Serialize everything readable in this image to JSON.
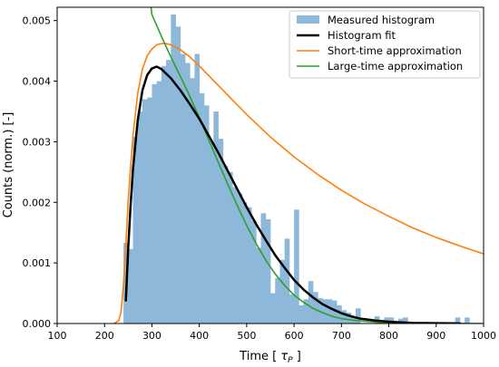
{
  "chart_data": {
    "type": "bar",
    "title": "",
    "xlabel": "Time [ τ_P ]",
    "xlabel_prefix": "Time [ ",
    "xlabel_symbol": "τ",
    "xlabel_subscript": "P",
    "xlabel_suffix": " ]",
    "ylabel": "Counts (norm.) [-]",
    "xlim": [
      100,
      1000
    ],
    "ylim": [
      0,
      0.00522
    ],
    "xticks": [
      100,
      200,
      300,
      400,
      500,
      600,
      700,
      800,
      900,
      1000
    ],
    "xtick_labels": [
      "100",
      "200",
      "300",
      "400",
      "500",
      "600",
      "700",
      "800",
      "900",
      "1000"
    ],
    "yticks": [
      0,
      0.001,
      0.002,
      0.003,
      0.004,
      0.005
    ],
    "ytick_labels": [
      "0.000",
      "0.001",
      "0.002",
      "0.003",
      "0.004",
      "0.005"
    ],
    "grid": false,
    "legend_position": "top-right",
    "series": [
      {
        "name": "Measured histogram",
        "kind": "histogram",
        "color": "#8db8da",
        "bin_width": 10,
        "bins": [
          [
            240,
            0.00133
          ],
          [
            250,
            0.00123
          ],
          [
            260,
            0.00308
          ],
          [
            270,
            0.0035
          ],
          [
            280,
            0.0037
          ],
          [
            290,
            0.00373
          ],
          [
            300,
            0.00395
          ],
          [
            310,
            0.004
          ],
          [
            320,
            0.00425
          ],
          [
            330,
            0.00435
          ],
          [
            340,
            0.0051
          ],
          [
            350,
            0.0049
          ],
          [
            360,
            0.00445
          ],
          [
            370,
            0.0043
          ],
          [
            380,
            0.00405
          ],
          [
            390,
            0.00445
          ],
          [
            400,
            0.0038
          ],
          [
            410,
            0.0036
          ],
          [
            420,
            0.003
          ],
          [
            430,
            0.0035
          ],
          [
            440,
            0.00305
          ],
          [
            450,
            0.0026
          ],
          [
            460,
            0.0025
          ],
          [
            470,
            0.00225
          ],
          [
            480,
            0.00215
          ],
          [
            490,
            0.002
          ],
          [
            500,
            0.00192
          ],
          [
            510,
            0.0017
          ],
          [
            520,
            0.00125
          ],
          [
            530,
            0.00182
          ],
          [
            540,
            0.00172
          ],
          [
            550,
            0.0005
          ],
          [
            560,
            0.00075
          ],
          [
            570,
            0.00105
          ],
          [
            580,
            0.0014
          ],
          [
            590,
            0.00048
          ],
          [
            600,
            0.00188
          ],
          [
            610,
            0.0003
          ],
          [
            620,
            0.0004
          ],
          [
            630,
            0.0007
          ],
          [
            640,
            0.00052
          ],
          [
            650,
            0.00042
          ],
          [
            660,
            0.0004
          ],
          [
            670,
            0.0004
          ],
          [
            680,
            0.00038
          ],
          [
            690,
            0.0003
          ],
          [
            700,
            0.00022
          ],
          [
            710,
            0.00018
          ],
          [
            720,
            0.00012
          ],
          [
            730,
            0.00025
          ],
          [
            770,
            0.00012
          ],
          [
            790,
            0.0001
          ],
          [
            800,
            0.0001
          ],
          [
            820,
            8e-05
          ],
          [
            830,
            0.0001
          ],
          [
            940,
            0.0001
          ],
          [
            960,
            0.0001
          ]
        ]
      },
      {
        "name": "Histogram fit",
        "kind": "line",
        "color": "#000000",
        "points": [
          [
            245,
            0.00038
          ],
          [
            250,
            0.00125
          ],
          [
            255,
            0.00195
          ],
          [
            260,
            0.00255
          ],
          [
            270,
            0.00335
          ],
          [
            280,
            0.00385
          ],
          [
            290,
            0.0041
          ],
          [
            300,
            0.00421
          ],
          [
            310,
            0.00424
          ],
          [
            320,
            0.0042
          ],
          [
            340,
            0.00405
          ],
          [
            360,
            0.00385
          ],
          [
            380,
            0.00362
          ],
          [
            400,
            0.00338
          ],
          [
            420,
            0.0031
          ],
          [
            440,
            0.00282
          ],
          [
            460,
            0.00252
          ],
          [
            480,
            0.00222
          ],
          [
            500,
            0.00192
          ],
          [
            520,
            0.00164
          ],
          [
            540,
            0.00138
          ],
          [
            560,
            0.00113
          ],
          [
            580,
            0.00092
          ],
          [
            600,
            0.00072
          ],
          [
            620,
            0.00056
          ],
          [
            640,
            0.00043
          ],
          [
            660,
            0.00032
          ],
          [
            680,
            0.00024
          ],
          [
            700,
            0.00017
          ],
          [
            720,
            0.00012
          ],
          [
            740,
            8e-05
          ],
          [
            770,
            5e-05
          ],
          [
            800,
            3e-05
          ],
          [
            850,
            1e-05
          ],
          [
            900,
            5e-06
          ],
          [
            950,
            2e-06
          ]
        ]
      },
      {
        "name": "Short-time approximation",
        "kind": "line",
        "color": "#ff7f0e",
        "points": [
          [
            220,
            0.0
          ],
          [
            230,
            5e-05
          ],
          [
            235,
            0.0002
          ],
          [
            240,
            0.00065
          ],
          [
            245,
            0.0013
          ],
          [
            250,
            0.00205
          ],
          [
            260,
            0.0031
          ],
          [
            270,
            0.0038
          ],
          [
            280,
            0.0042
          ],
          [
            290,
            0.00442
          ],
          [
            300,
            0.00453
          ],
          [
            310,
            0.0046
          ],
          [
            320,
            0.00462
          ],
          [
            330,
            0.00462
          ],
          [
            340,
            0.0046
          ],
          [
            360,
            0.00452
          ],
          [
            380,
            0.0044
          ],
          [
            400,
            0.00425
          ],
          [
            450,
            0.00385
          ],
          [
            500,
            0.00345
          ],
          [
            550,
            0.00308
          ],
          [
            600,
            0.00275
          ],
          [
            650,
            0.00246
          ],
          [
            700,
            0.0022
          ],
          [
            750,
            0.00197
          ],
          [
            800,
            0.00177
          ],
          [
            850,
            0.00158
          ],
          [
            900,
            0.00142
          ],
          [
            950,
            0.00128
          ],
          [
            1000,
            0.00115
          ]
        ]
      },
      {
        "name": "Large-time approximation",
        "kind": "line",
        "color": "#2ca02c",
        "points": [
          [
            298,
            0.00522
          ],
          [
            300,
            0.0051
          ],
          [
            310,
            0.00492
          ],
          [
            320,
            0.00474
          ],
          [
            340,
            0.0044
          ],
          [
            360,
            0.00408
          ],
          [
            380,
            0.00375
          ],
          [
            400,
            0.0034
          ],
          [
            420,
            0.00303
          ],
          [
            440,
            0.00266
          ],
          [
            460,
            0.0023
          ],
          [
            480,
            0.00195
          ],
          [
            500,
            0.00162
          ],
          [
            520,
            0.00132
          ],
          [
            540,
            0.00105
          ],
          [
            560,
            0.00082
          ],
          [
            580,
            0.00063
          ],
          [
            600,
            0.00047
          ],
          [
            620,
            0.00035
          ],
          [
            640,
            0.00025
          ],
          [
            660,
            0.00018
          ],
          [
            680,
            0.00012
          ],
          [
            700,
            8e-05
          ],
          [
            730,
            5e-05
          ],
          [
            760,
            3e-05
          ],
          [
            800,
            1e-05
          ],
          [
            850,
            5e-06
          ],
          [
            900,
            2e-06
          ],
          [
            950,
            1e-06
          ],
          [
            1000,
            0.0
          ]
        ]
      }
    ]
  }
}
